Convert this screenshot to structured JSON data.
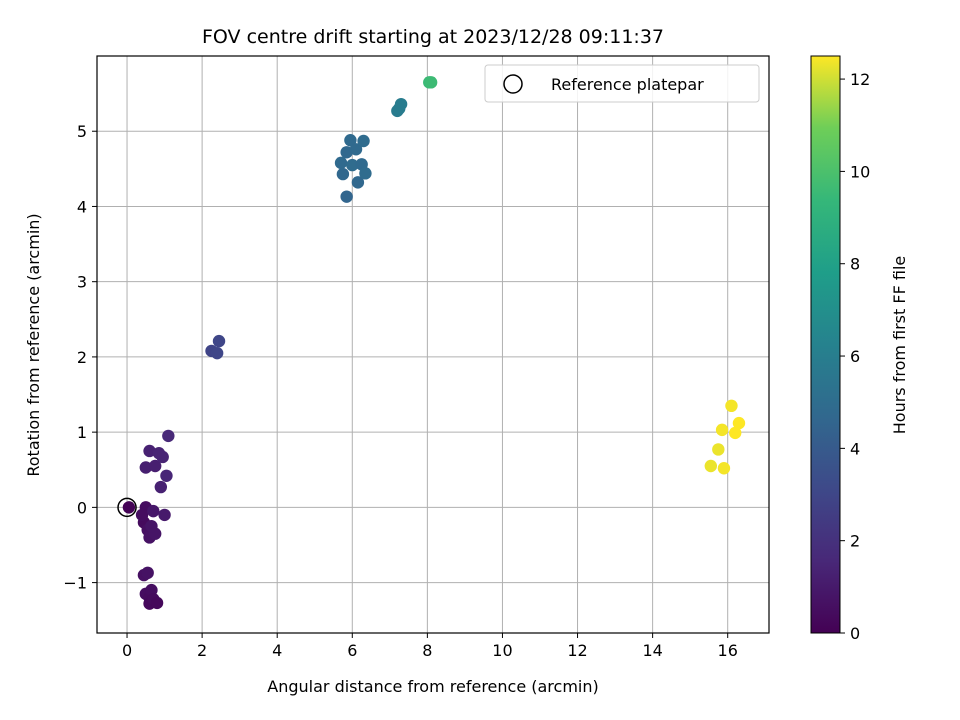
{
  "chart_data": {
    "type": "scatter",
    "title": "FOV centre drift starting at 2023/12/28 09:11:37",
    "xlabel": "Angular distance from reference (arcmin)",
    "ylabel": "Rotation from reference (arcmin)",
    "xlim": [
      -0.8,
      17.1
    ],
    "ylim": [
      -1.67,
      6.0
    ],
    "xticks": [
      0,
      2,
      4,
      6,
      8,
      10,
      12,
      14,
      16
    ],
    "yticks": [
      -1,
      0,
      1,
      2,
      3,
      4,
      5
    ],
    "grid": true,
    "legend": {
      "placement": "top-right",
      "entries": [
        "Reference platepar"
      ]
    },
    "reference_point": {
      "x": 0,
      "y": 0
    },
    "colorbar": {
      "label": "Hours from first FF file",
      "range": [
        0,
        12.5
      ],
      "ticks": [
        0,
        2,
        4,
        6,
        8,
        10,
        12
      ],
      "colormap": "viridis"
    },
    "points": [
      {
        "x": 0.05,
        "y": 0.0,
        "t": 0.1
      },
      {
        "x": 0.45,
        "y": -0.2,
        "t": 0.4
      },
      {
        "x": 0.5,
        "y": 0.0,
        "t": 0.5
      },
      {
        "x": 0.55,
        "y": -0.3,
        "t": 0.6
      },
      {
        "x": 0.6,
        "y": -0.4,
        "t": 0.7
      },
      {
        "x": 0.4,
        "y": -0.1,
        "t": 0.5
      },
      {
        "x": 0.75,
        "y": -0.35,
        "t": 0.8
      },
      {
        "x": 0.7,
        "y": -0.05,
        "t": 0.9
      },
      {
        "x": 0.65,
        "y": -0.25,
        "t": 0.8
      },
      {
        "x": 1.0,
        "y": -0.1,
        "t": 1.0
      },
      {
        "x": 0.45,
        "y": -0.9,
        "t": 0.6
      },
      {
        "x": 0.55,
        "y": -0.87,
        "t": 0.7
      },
      {
        "x": 0.5,
        "y": -1.15,
        "t": 0.5
      },
      {
        "x": 0.6,
        "y": -1.2,
        "t": 0.4
      },
      {
        "x": 0.65,
        "y": -1.1,
        "t": 0.5
      },
      {
        "x": 0.6,
        "y": -1.28,
        "t": 0.3
      },
      {
        "x": 0.7,
        "y": -1.22,
        "t": 0.4
      },
      {
        "x": 0.8,
        "y": -1.27,
        "t": 0.3
      },
      {
        "x": 0.5,
        "y": 0.53,
        "t": 1.2
      },
      {
        "x": 0.6,
        "y": 0.75,
        "t": 1.3
      },
      {
        "x": 0.75,
        "y": 0.55,
        "t": 1.2
      },
      {
        "x": 0.85,
        "y": 0.72,
        "t": 1.4
      },
      {
        "x": 0.95,
        "y": 0.67,
        "t": 1.4
      },
      {
        "x": 0.9,
        "y": 0.27,
        "t": 1.3
      },
      {
        "x": 1.05,
        "y": 0.42,
        "t": 1.5
      },
      {
        "x": 1.1,
        "y": 0.95,
        "t": 1.6
      },
      {
        "x": 2.25,
        "y": 2.08,
        "t": 2.9
      },
      {
        "x": 2.4,
        "y": 2.05,
        "t": 3.0
      },
      {
        "x": 2.45,
        "y": 2.21,
        "t": 3.0
      },
      {
        "x": 5.85,
        "y": 4.13,
        "t": 4.6
      },
      {
        "x": 5.75,
        "y": 4.43,
        "t": 4.7
      },
      {
        "x": 5.7,
        "y": 4.58,
        "t": 4.8
      },
      {
        "x": 5.85,
        "y": 4.72,
        "t": 4.7
      },
      {
        "x": 5.95,
        "y": 4.88,
        "t": 4.8
      },
      {
        "x": 6.0,
        "y": 4.55,
        "t": 4.9
      },
      {
        "x": 6.1,
        "y": 4.76,
        "t": 4.8
      },
      {
        "x": 6.15,
        "y": 4.32,
        "t": 4.7
      },
      {
        "x": 6.25,
        "y": 4.56,
        "t": 4.8
      },
      {
        "x": 6.3,
        "y": 4.87,
        "t": 4.9
      },
      {
        "x": 6.35,
        "y": 4.44,
        "t": 4.9
      },
      {
        "x": 7.2,
        "y": 5.27,
        "t": 5.8
      },
      {
        "x": 7.25,
        "y": 5.3,
        "t": 5.9
      },
      {
        "x": 7.3,
        "y": 5.36,
        "t": 5.9
      },
      {
        "x": 8.05,
        "y": 5.65,
        "t": 9.5
      },
      {
        "x": 8.1,
        "y": 5.65,
        "t": 9.6
      },
      {
        "x": 15.55,
        "y": 0.55,
        "t": 12.3
      },
      {
        "x": 15.75,
        "y": 0.77,
        "t": 12.3
      },
      {
        "x": 15.85,
        "y": 1.03,
        "t": 12.4
      },
      {
        "x": 15.9,
        "y": 0.52,
        "t": 12.4
      },
      {
        "x": 16.1,
        "y": 1.35,
        "t": 12.4
      },
      {
        "x": 16.2,
        "y": 0.99,
        "t": 12.5
      },
      {
        "x": 16.3,
        "y": 1.12,
        "t": 12.5
      }
    ]
  }
}
